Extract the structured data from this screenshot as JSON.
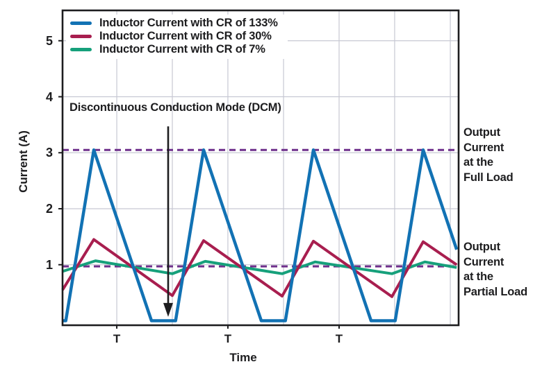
{
  "figure": {
    "background": "#ffffff",
    "text_color": "#1d1d1f"
  },
  "chart_data": {
    "type": "line",
    "xlabel": "Time",
    "ylabel": "Current (A)",
    "x_unit": "T (switching period)",
    "xlim_T": [
      0,
      3.608
    ],
    "ylim": [
      0,
      5.54
    ],
    "y_ticks": [
      1,
      2,
      3,
      4,
      5
    ],
    "y_tick_labels": [
      "1",
      "2",
      "3",
      "4",
      "5"
    ],
    "x_tick_positions_T": [
      0.494,
      1.506,
      2.519
    ],
    "x_tick_labels": [
      "T",
      "T",
      "T"
    ],
    "grid": {
      "on": true,
      "color": "#c7c8d3",
      "x_gridlines_T": [
        0.494,
        1.0,
        1.506,
        2.013,
        2.519,
        3.025,
        3.532
      ],
      "y_gridlines": [
        1,
        2,
        3,
        4,
        5
      ]
    },
    "legend_position": "upper-left",
    "series": [
      {
        "name": "Inductor Current with CR of 133%",
        "color": "#1272b4",
        "width": 4.5,
        "points_T_A": [
          [
            0,
            0
          ],
          [
            0.03,
            0
          ],
          [
            0.285,
            3.05
          ],
          [
            0.81,
            0
          ],
          [
            1.03,
            0
          ],
          [
            1.285,
            3.05
          ],
          [
            1.81,
            0
          ],
          [
            2.03,
            0
          ],
          [
            2.285,
            3.05
          ],
          [
            2.81,
            0
          ],
          [
            3.03,
            0
          ],
          [
            3.285,
            3.05
          ],
          [
            3.59,
            1.27
          ]
        ]
      },
      {
        "name": "Inductor Current with CR of 30%",
        "color": "#a81e4f",
        "width": 4,
        "points_T_A": [
          [
            0,
            0.55
          ],
          [
            0.285,
            1.45
          ],
          [
            1.0,
            0.45
          ],
          [
            1.285,
            1.43
          ],
          [
            2.0,
            0.44
          ],
          [
            2.285,
            1.42
          ],
          [
            3.0,
            0.43
          ],
          [
            3.285,
            1.41
          ],
          [
            3.59,
            1.0
          ]
        ]
      },
      {
        "name": "Inductor Current with CR of 7%",
        "color": "#16a07b",
        "width": 4,
        "points_T_A": [
          [
            0,
            0.88
          ],
          [
            0.3,
            1.07
          ],
          [
            1.0,
            0.84
          ],
          [
            1.3,
            1.06
          ],
          [
            2.0,
            0.84
          ],
          [
            2.3,
            1.05
          ],
          [
            3.0,
            0.84
          ],
          [
            3.3,
            1.05
          ],
          [
            3.59,
            0.95
          ]
        ]
      }
    ],
    "reference_lines": [
      {
        "label": "Output Current at the Full Load",
        "label_lines": [
          "Output",
          "Current",
          "at the",
          "Full Load"
        ],
        "value_A": 3.05,
        "color": "#6e2f8b",
        "style": "dashed"
      },
      {
        "label": "Output Current at the Partial Load",
        "label_lines": [
          "Output",
          "Current",
          "at the",
          "Partial Load"
        ],
        "value_A": 0.97,
        "color": "#6e2f8b",
        "style": "dashed"
      }
    ],
    "annotations": [
      {
        "text": "Discontinuous Conduction Mode (DCM)",
        "arrow": {
          "x_T": 0.962,
          "from_A": 3.47,
          "to_A": 0.07,
          "color": "#1d1d1f"
        }
      }
    ]
  },
  "legend": {
    "items": [
      {
        "label": "Inductor Current with CR of 133%"
      },
      {
        "label": "Inductor Current with CR of 30%"
      },
      {
        "label": "Inductor Current with CR of 7%"
      }
    ]
  }
}
